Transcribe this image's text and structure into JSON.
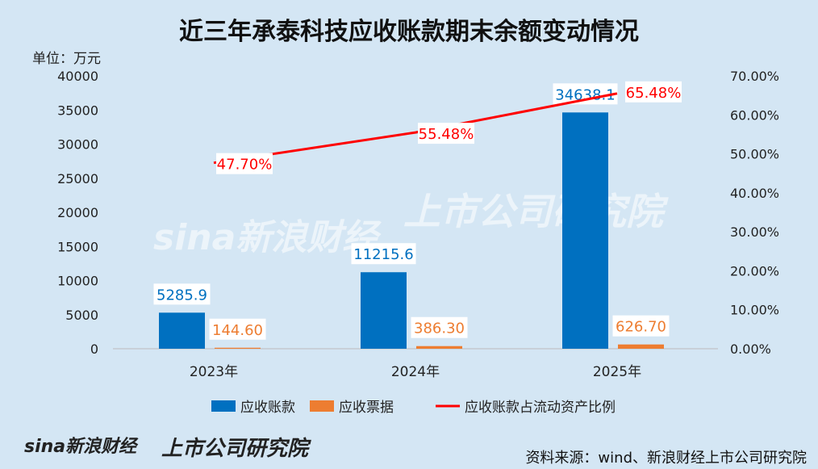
{
  "chart_data": {
    "type": "bar+line",
    "title": "近三年承泰科技应收账款期末余额变动情况",
    "ylabel": "单位：万元",
    "categories": [
      "2023年",
      "2024年",
      "2025年"
    ],
    "ylim": [
      0,
      40000
    ],
    "y2lim": [
      0,
      70
    ],
    "yticks": [
      "0",
      "5000",
      "10000",
      "15000",
      "20000",
      "25000",
      "30000",
      "35000",
      "40000"
    ],
    "y2ticks": [
      "0.00%",
      "10.00%",
      "20.00%",
      "30.00%",
      "40.00%",
      "50.00%",
      "60.00%",
      "70.00%"
    ],
    "series": [
      {
        "name": "应收账款",
        "type": "bar",
        "color": "#0070c0",
        "values": [
          5285.9,
          11215.6,
          34638.1
        ],
        "labels": [
          "5285.9",
          "11215.6",
          "34638.1"
        ]
      },
      {
        "name": "应收票据",
        "type": "bar",
        "color": "#ed7d31",
        "values": [
          144.6,
          386.3,
          626.7
        ],
        "labels": [
          "144.60",
          "386.30",
          "626.70"
        ]
      },
      {
        "name": "应收账款占流动资产比例",
        "type": "line",
        "axis": "right",
        "color": "#ff0000",
        "values": [
          47.7,
          55.48,
          65.48
        ],
        "labels": [
          "47.70%",
          "55.48%",
          "65.48%"
        ]
      }
    ],
    "legend_position": "bottom"
  },
  "watermark": {
    "left": "sina新浪财经",
    "right": "上市公司研究院"
  },
  "footer": {
    "source": "资料来源：wind、新浪财经上市公司研究院",
    "logo_left": "sina新浪财经",
    "logo_right": "上市公司研究院"
  }
}
